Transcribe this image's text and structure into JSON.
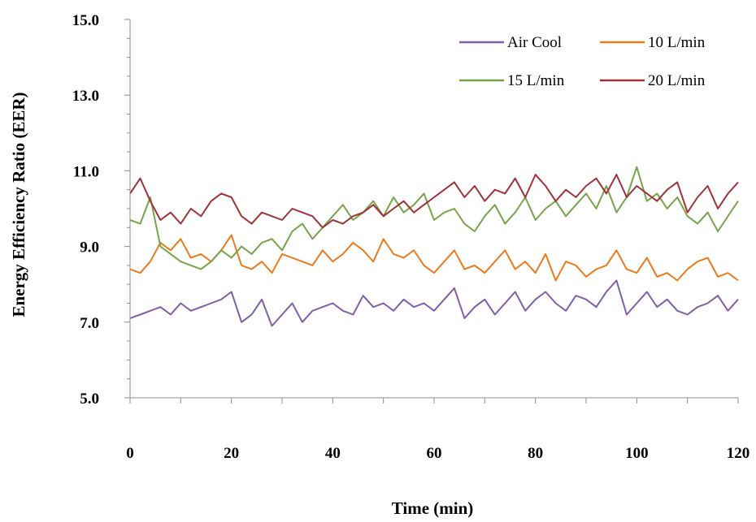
{
  "chart_data": {
    "type": "line",
    "title": "",
    "xlabel": "Time (min)",
    "ylabel": "Energy Efficiency Ratio (EER)",
    "xlim": [
      0,
      120
    ],
    "ylim": [
      5.0,
      15.0
    ],
    "x_ticks": [
      "0",
      "20",
      "40",
      "60",
      "80",
      "100",
      "120"
    ],
    "y_ticks": [
      "5.0",
      "7.0",
      "9.0",
      "11.0",
      "13.0",
      "15.0"
    ],
    "grid": false,
    "legend_placement": "top-right",
    "x": [
      0,
      2,
      4,
      6,
      8,
      10,
      12,
      14,
      16,
      18,
      20,
      22,
      24,
      26,
      28,
      30,
      32,
      34,
      36,
      38,
      40,
      42,
      44,
      46,
      48,
      50,
      52,
      54,
      56,
      58,
      60,
      62,
      64,
      66,
      68,
      70,
      72,
      74,
      76,
      78,
      80,
      82,
      84,
      86,
      88,
      90,
      92,
      94,
      96,
      98,
      100,
      102,
      104,
      106,
      108,
      110,
      112,
      114,
      116,
      118,
      120
    ],
    "series": [
      {
        "name": "Air Cool",
        "color": "#7f5fa8",
        "values": [
          7.1,
          7.2,
          7.3,
          7.4,
          7.2,
          7.5,
          7.3,
          7.4,
          7.5,
          7.6,
          7.8,
          7.0,
          7.2,
          7.6,
          6.9,
          7.2,
          7.5,
          7.0,
          7.3,
          7.4,
          7.5,
          7.3,
          7.2,
          7.7,
          7.4,
          7.5,
          7.3,
          7.6,
          7.4,
          7.5,
          7.3,
          7.6,
          7.9,
          7.1,
          7.4,
          7.6,
          7.2,
          7.5,
          7.8,
          7.3,
          7.6,
          7.8,
          7.5,
          7.3,
          7.7,
          7.6,
          7.4,
          7.8,
          8.1,
          7.2,
          7.5,
          7.8,
          7.4,
          7.6,
          7.3,
          7.2,
          7.4,
          7.5,
          7.7,
          7.3,
          7.6
        ]
      },
      {
        "name": "10 L/min",
        "color": "#ec7b1f",
        "values": [
          8.4,
          8.3,
          8.6,
          9.1,
          8.9,
          9.2,
          8.7,
          8.8,
          8.6,
          8.9,
          9.3,
          8.5,
          8.4,
          8.6,
          8.3,
          8.8,
          8.7,
          8.6,
          8.5,
          8.9,
          8.6,
          8.8,
          9.1,
          8.9,
          8.6,
          9.2,
          8.8,
          8.7,
          8.9,
          8.5,
          8.3,
          8.6,
          8.9,
          8.4,
          8.5,
          8.3,
          8.6,
          8.9,
          8.4,
          8.6,
          8.3,
          8.8,
          8.1,
          8.6,
          8.5,
          8.2,
          8.4,
          8.5,
          8.9,
          8.4,
          8.3,
          8.7,
          8.2,
          8.3,
          8.1,
          8.4,
          8.6,
          8.7,
          8.2,
          8.3,
          8.1
        ]
      },
      {
        "name": "15 L/min",
        "color": "#77a44a",
        "values": [
          9.7,
          9.6,
          10.3,
          9.0,
          8.8,
          8.6,
          8.5,
          8.4,
          8.6,
          8.9,
          8.7,
          9.0,
          8.8,
          9.1,
          9.2,
          8.9,
          9.4,
          9.6,
          9.2,
          9.5,
          9.8,
          10.1,
          9.7,
          9.9,
          10.2,
          9.8,
          10.3,
          9.9,
          10.1,
          10.4,
          9.7,
          9.9,
          10.0,
          9.6,
          9.4,
          9.8,
          10.1,
          9.6,
          9.9,
          10.3,
          9.7,
          10.0,
          10.2,
          9.8,
          10.1,
          10.4,
          10.0,
          10.6,
          9.9,
          10.3,
          11.1,
          10.2,
          10.4,
          10.0,
          10.3,
          9.8,
          9.6,
          9.9,
          9.4,
          9.8,
          10.2
        ]
      },
      {
        "name": "20 L/min",
        "color": "#a0333a",
        "values": [
          10.4,
          10.8,
          10.2,
          9.7,
          9.9,
          9.6,
          10.0,
          9.8,
          10.2,
          10.4,
          10.3,
          9.8,
          9.6,
          9.9,
          9.8,
          9.7,
          10.0,
          9.9,
          9.8,
          9.5,
          9.7,
          9.6,
          9.8,
          9.9,
          10.1,
          9.8,
          10.0,
          10.2,
          9.9,
          10.1,
          10.3,
          10.5,
          10.7,
          10.3,
          10.6,
          10.2,
          10.5,
          10.4,
          10.8,
          10.3,
          10.9,
          10.6,
          10.2,
          10.5,
          10.3,
          10.6,
          10.8,
          10.4,
          10.9,
          10.3,
          10.6,
          10.4,
          10.2,
          10.5,
          10.7,
          9.9,
          10.3,
          10.6,
          10.0,
          10.4,
          10.7
        ]
      }
    ]
  }
}
